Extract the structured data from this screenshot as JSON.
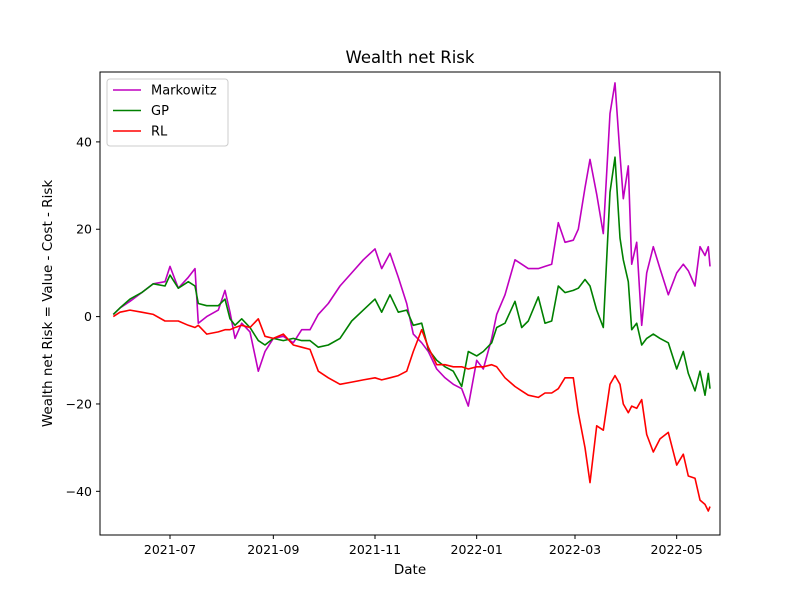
{
  "chart_data": {
    "type": "line",
    "title": "Wealth net Risk",
    "xlabel": "Date",
    "ylabel": "Wealth net Risk = Value - Cost - Risk",
    "x_ticks": [
      "2021-07",
      "2021-09",
      "2021-11",
      "2022-01",
      "2022-03",
      "2022-05"
    ],
    "y_ticks": [
      "−40",
      "−20",
      "0",
      "20",
      "40"
    ],
    "y_tick_values": [
      -40,
      -20,
      0,
      20,
      40
    ],
    "xlim": [
      "2021-05-20",
      "2022-05-27"
    ],
    "ylim": [
      -50,
      56
    ],
    "grid": false,
    "legend_position": "top-left",
    "series": [
      {
        "name": "Markowitz",
        "color": "#bf00bf",
        "points": [
          [
            "2021-05-28",
            0.5
          ],
          [
            "2021-06-01",
            2
          ],
          [
            "2021-06-07",
            3.5
          ],
          [
            "2021-06-14",
            5.5
          ],
          [
            "2021-06-21",
            7.5
          ],
          [
            "2021-06-28",
            8
          ],
          [
            "2021-07-01",
            11.5
          ],
          [
            "2021-07-06",
            6.5
          ],
          [
            "2021-07-12",
            9
          ],
          [
            "2021-07-16",
            11
          ],
          [
            "2021-07-18",
            -1.5
          ],
          [
            "2021-07-23",
            0
          ],
          [
            "2021-07-30",
            1.5
          ],
          [
            "2021-08-03",
            6
          ],
          [
            "2021-08-06",
            1
          ],
          [
            "2021-08-09",
            -5
          ],
          [
            "2021-08-13",
            -1.5
          ],
          [
            "2021-08-18",
            -3.5
          ],
          [
            "2021-08-23",
            -12.5
          ],
          [
            "2021-08-27",
            -8
          ],
          [
            "2021-09-01",
            -5
          ],
          [
            "2021-09-07",
            -4.5
          ],
          [
            "2021-09-13",
            -6
          ],
          [
            "2021-09-18",
            -3
          ],
          [
            "2021-09-23",
            -3
          ],
          [
            "2021-09-28",
            0.5
          ],
          [
            "2021-10-04",
            3
          ],
          [
            "2021-10-11",
            7
          ],
          [
            "2021-10-18",
            10
          ],
          [
            "2021-10-25",
            13
          ],
          [
            "2021-11-01",
            15.5
          ],
          [
            "2021-11-05",
            11
          ],
          [
            "2021-11-10",
            14.5
          ],
          [
            "2021-11-15",
            9
          ],
          [
            "2021-11-20",
            3
          ],
          [
            "2021-11-24",
            -4
          ],
          [
            "2021-11-29",
            -6
          ],
          [
            "2021-12-03",
            -8
          ],
          [
            "2021-12-08",
            -12
          ],
          [
            "2021-12-13",
            -14
          ],
          [
            "2021-12-18",
            -15.5
          ],
          [
            "2021-12-23",
            -16.5
          ],
          [
            "2021-12-27",
            -20.5
          ],
          [
            "2022-01-01",
            -10
          ],
          [
            "2022-01-05",
            -12
          ],
          [
            "2022-01-10",
            -5
          ],
          [
            "2022-01-13",
            0.5
          ],
          [
            "2022-01-18",
            5
          ],
          [
            "2022-01-24",
            13
          ],
          [
            "2022-01-28",
            12
          ],
          [
            "2022-02-01",
            11
          ],
          [
            "2022-02-07",
            11
          ],
          [
            "2022-02-11",
            11.5
          ],
          [
            "2022-02-15",
            12
          ],
          [
            "2022-02-19",
            21.5
          ],
          [
            "2022-02-23",
            17
          ],
          [
            "2022-02-28",
            17.5
          ],
          [
            "2022-03-03",
            20
          ],
          [
            "2022-03-07",
            29.5
          ],
          [
            "2022-03-10",
            36
          ],
          [
            "2022-03-14",
            28
          ],
          [
            "2022-03-18",
            19
          ],
          [
            "2022-03-22",
            46.5
          ],
          [
            "2022-03-25",
            53.5
          ],
          [
            "2022-03-28",
            37
          ],
          [
            "2022-03-30",
            27
          ],
          [
            "2022-04-02",
            34.5
          ],
          [
            "2022-04-04",
            12
          ],
          [
            "2022-04-07",
            17
          ],
          [
            "2022-04-10",
            -2
          ],
          [
            "2022-04-13",
            10
          ],
          [
            "2022-04-17",
            16
          ],
          [
            "2022-04-21",
            11
          ],
          [
            "2022-04-26",
            5
          ],
          [
            "2022-05-01",
            10
          ],
          [
            "2022-05-05",
            12
          ],
          [
            "2022-05-08",
            10.5
          ],
          [
            "2022-05-12",
            7
          ],
          [
            "2022-05-15",
            16
          ],
          [
            "2022-05-18",
            14
          ],
          [
            "2022-05-20",
            16
          ],
          [
            "2022-05-21",
            11.5
          ]
        ]
      },
      {
        "name": "GP",
        "color": "#008000",
        "points": [
          [
            "2021-05-28",
            0.5
          ],
          [
            "2021-06-01",
            2
          ],
          [
            "2021-06-07",
            4
          ],
          [
            "2021-06-14",
            5.5
          ],
          [
            "2021-06-21",
            7.5
          ],
          [
            "2021-06-28",
            7
          ],
          [
            "2021-07-01",
            9.5
          ],
          [
            "2021-07-06",
            6.5
          ],
          [
            "2021-07-12",
            8
          ],
          [
            "2021-07-16",
            7
          ],
          [
            "2021-07-18",
            3
          ],
          [
            "2021-07-23",
            2.5
          ],
          [
            "2021-07-30",
            2.5
          ],
          [
            "2021-08-03",
            4
          ],
          [
            "2021-08-06",
            -0.5
          ],
          [
            "2021-08-09",
            -2
          ],
          [
            "2021-08-13",
            -0.5
          ],
          [
            "2021-08-18",
            -2.5
          ],
          [
            "2021-08-23",
            -5.5
          ],
          [
            "2021-08-27",
            -6.5
          ],
          [
            "2021-09-01",
            -5
          ],
          [
            "2021-09-07",
            -5.5
          ],
          [
            "2021-09-13",
            -5
          ],
          [
            "2021-09-18",
            -5.5
          ],
          [
            "2021-09-23",
            -5.5
          ],
          [
            "2021-09-28",
            -7
          ],
          [
            "2021-10-04",
            -6.5
          ],
          [
            "2021-10-11",
            -5
          ],
          [
            "2021-10-18",
            -1
          ],
          [
            "2021-10-25",
            1.5
          ],
          [
            "2021-11-01",
            4
          ],
          [
            "2021-11-05",
            1
          ],
          [
            "2021-11-10",
            5
          ],
          [
            "2021-11-15",
            1
          ],
          [
            "2021-11-20",
            1.5
          ],
          [
            "2021-11-24",
            -2
          ],
          [
            "2021-11-29",
            -1.5
          ],
          [
            "2021-12-03",
            -7.5
          ],
          [
            "2021-12-08",
            -10
          ],
          [
            "2021-12-13",
            -11.5
          ],
          [
            "2021-12-18",
            -12.5
          ],
          [
            "2021-12-23",
            -16
          ],
          [
            "2021-12-27",
            -8
          ],
          [
            "2022-01-01",
            -9
          ],
          [
            "2022-01-05",
            -8
          ],
          [
            "2022-01-10",
            -6
          ],
          [
            "2022-01-13",
            -2.5
          ],
          [
            "2022-01-18",
            -1.5
          ],
          [
            "2022-01-24",
            3.5
          ],
          [
            "2022-01-28",
            -2.5
          ],
          [
            "2022-02-01",
            -1
          ],
          [
            "2022-02-07",
            4.5
          ],
          [
            "2022-02-11",
            -1.5
          ],
          [
            "2022-02-15",
            -1
          ],
          [
            "2022-02-19",
            7
          ],
          [
            "2022-02-23",
            5.5
          ],
          [
            "2022-02-28",
            6
          ],
          [
            "2022-03-03",
            6.5
          ],
          [
            "2022-03-07",
            8.5
          ],
          [
            "2022-03-10",
            7
          ],
          [
            "2022-03-14",
            1.5
          ],
          [
            "2022-03-18",
            -2.5
          ],
          [
            "2022-03-22",
            28.5
          ],
          [
            "2022-03-25",
            36.5
          ],
          [
            "2022-03-28",
            18
          ],
          [
            "2022-03-30",
            13
          ],
          [
            "2022-04-02",
            8
          ],
          [
            "2022-04-04",
            -3
          ],
          [
            "2022-04-07",
            -1.5
          ],
          [
            "2022-04-10",
            -6.5
          ],
          [
            "2022-04-13",
            -5
          ],
          [
            "2022-04-17",
            -4
          ],
          [
            "2022-04-21",
            -5
          ],
          [
            "2022-04-26",
            -6
          ],
          [
            "2022-05-01",
            -12
          ],
          [
            "2022-05-05",
            -8
          ],
          [
            "2022-05-08",
            -13
          ],
          [
            "2022-05-12",
            -17
          ],
          [
            "2022-05-15",
            -12.5
          ],
          [
            "2022-05-18",
            -18
          ],
          [
            "2022-05-20",
            -13
          ],
          [
            "2022-05-21",
            -16.5
          ]
        ]
      },
      {
        "name": "RL",
        "color": "#ff0000",
        "points": [
          [
            "2021-05-28",
            0
          ],
          [
            "2021-06-01",
            1
          ],
          [
            "2021-06-07",
            1.5
          ],
          [
            "2021-06-14",
            1
          ],
          [
            "2021-06-21",
            0.5
          ],
          [
            "2021-06-28",
            -1
          ],
          [
            "2021-07-01",
            -1
          ],
          [
            "2021-07-06",
            -1
          ],
          [
            "2021-07-12",
            -2
          ],
          [
            "2021-07-16",
            -2.5
          ],
          [
            "2021-07-18",
            -2
          ],
          [
            "2021-07-23",
            -4
          ],
          [
            "2021-07-30",
            -3.5
          ],
          [
            "2021-08-03",
            -3
          ],
          [
            "2021-08-06",
            -3
          ],
          [
            "2021-08-09",
            -2.5
          ],
          [
            "2021-08-13",
            -2
          ],
          [
            "2021-08-18",
            -2.5
          ],
          [
            "2021-08-23",
            -0.5
          ],
          [
            "2021-08-27",
            -4.5
          ],
          [
            "2021-09-01",
            -5
          ],
          [
            "2021-09-07",
            -4
          ],
          [
            "2021-09-13",
            -6.5
          ],
          [
            "2021-09-18",
            -7
          ],
          [
            "2021-09-23",
            -7.5
          ],
          [
            "2021-09-28",
            -12.5
          ],
          [
            "2021-10-04",
            -14
          ],
          [
            "2021-10-11",
            -15.5
          ],
          [
            "2021-10-18",
            -15
          ],
          [
            "2021-10-25",
            -14.5
          ],
          [
            "2021-11-01",
            -14
          ],
          [
            "2021-11-05",
            -14.5
          ],
          [
            "2021-11-10",
            -14
          ],
          [
            "2021-11-15",
            -13.5
          ],
          [
            "2021-11-20",
            -12.5
          ],
          [
            "2021-11-24",
            -8
          ],
          [
            "2021-11-29",
            -3
          ],
          [
            "2021-12-03",
            -7
          ],
          [
            "2021-12-08",
            -11
          ],
          [
            "2021-12-13",
            -11
          ],
          [
            "2021-12-18",
            -11.5
          ],
          [
            "2021-12-23",
            -11.5
          ],
          [
            "2021-12-27",
            -12
          ],
          [
            "2022-01-01",
            -11.5
          ],
          [
            "2022-01-05",
            -11.5
          ],
          [
            "2022-01-10",
            -11
          ],
          [
            "2022-01-13",
            -11.5
          ],
          [
            "2022-01-18",
            -14
          ],
          [
            "2022-01-24",
            -16
          ],
          [
            "2022-01-28",
            -17
          ],
          [
            "2022-02-01",
            -18
          ],
          [
            "2022-02-07",
            -18.5
          ],
          [
            "2022-02-11",
            -17.5
          ],
          [
            "2022-02-15",
            -17.5
          ],
          [
            "2022-02-19",
            -16.5
          ],
          [
            "2022-02-23",
            -14
          ],
          [
            "2022-02-28",
            -14
          ],
          [
            "2022-03-03",
            -22
          ],
          [
            "2022-03-07",
            -30
          ],
          [
            "2022-03-10",
            -38
          ],
          [
            "2022-03-14",
            -25
          ],
          [
            "2022-03-18",
            -26
          ],
          [
            "2022-03-22",
            -15.5
          ],
          [
            "2022-03-25",
            -13.5
          ],
          [
            "2022-03-28",
            -15.5
          ],
          [
            "2022-03-30",
            -20
          ],
          [
            "2022-04-02",
            -22
          ],
          [
            "2022-04-04",
            -20.5
          ],
          [
            "2022-04-07",
            -21
          ],
          [
            "2022-04-10",
            -19
          ],
          [
            "2022-04-13",
            -27
          ],
          [
            "2022-04-17",
            -31
          ],
          [
            "2022-04-21",
            -28
          ],
          [
            "2022-04-26",
            -26.5
          ],
          [
            "2022-05-01",
            -34
          ],
          [
            "2022-05-05",
            -31.5
          ],
          [
            "2022-05-08",
            -36.5
          ],
          [
            "2022-05-12",
            -37
          ],
          [
            "2022-05-15",
            -42
          ],
          [
            "2022-05-18",
            -43
          ],
          [
            "2022-05-20",
            -44.5
          ],
          [
            "2022-05-21",
            -43.5
          ]
        ]
      }
    ]
  }
}
